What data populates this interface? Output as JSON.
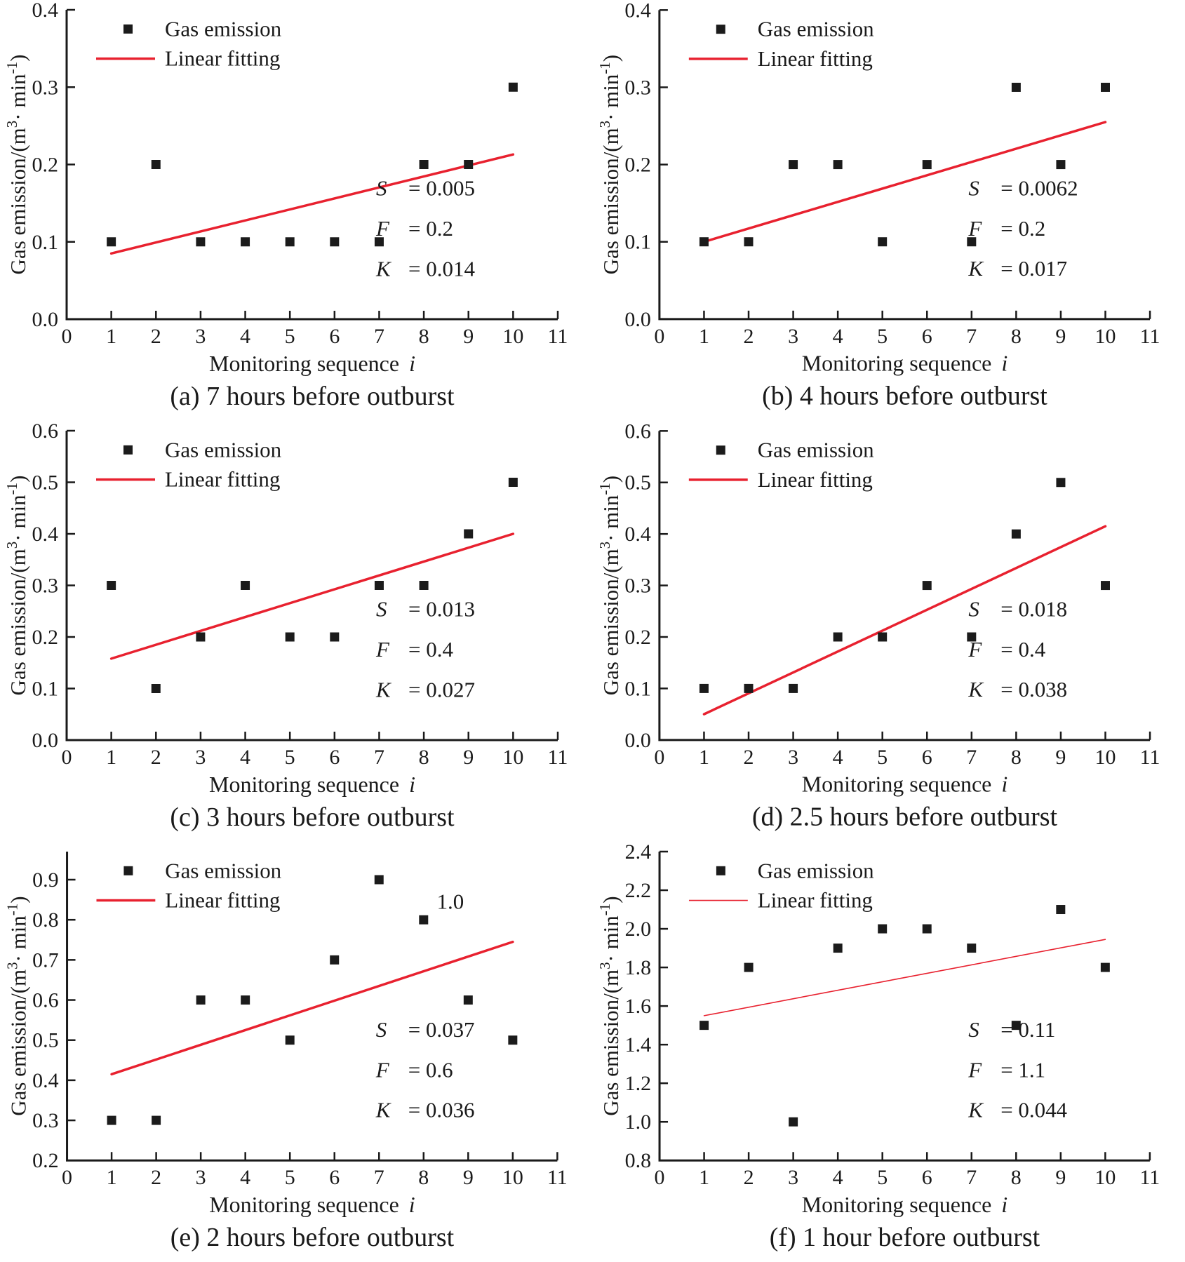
{
  "figure": {
    "x_axis_label": {
      "prefix": "Monitoring sequence",
      "var": "i"
    },
    "y_axis_label": {
      "prefix": "Gas emission/(m",
      "sup1": "3",
      "mid": "· min",
      "sup2": "-1",
      "suffix": ")"
    },
    "legend": {
      "marker_label": "Gas emission",
      "line_label": "Linear fitting"
    },
    "colors": {
      "point": "#1b1b1b",
      "fit_line": "#e8212f",
      "axis": "#1a1a1a",
      "text": "#1a1a1a"
    }
  },
  "chart_data": [
    {
      "type": "scatter",
      "panel": "a",
      "caption": "(a) 7 hours before outburst",
      "x": [
        1,
        2,
        3,
        4,
        5,
        6,
        7,
        8,
        9,
        10
      ],
      "y": [
        0.1,
        0.2,
        0.1,
        0.1,
        0.1,
        0.1,
        0.1,
        0.2,
        0.2,
        0.3
      ],
      "fit_line": {
        "x1": 1,
        "y1": 0.085,
        "x2": 10,
        "y2": 0.213
      },
      "stats": [
        {
          "k": "S",
          "v": "= 0.005"
        },
        {
          "k": "F",
          "v": "= 0.2"
        },
        {
          "k": "K",
          "v": "= 0.014"
        }
      ],
      "xlim": [
        0,
        11
      ],
      "ylim": [
        0,
        0.4
      ],
      "xticks": [
        "0",
        "1",
        "2",
        "3",
        "4",
        "5",
        "6",
        "7",
        "8",
        "9",
        "10",
        "11"
      ],
      "yticks": [
        "0.0",
        "0.1",
        "0.2",
        "0.3",
        "0.4"
      ],
      "fit_width": 3.5
    },
    {
      "type": "scatter",
      "panel": "b",
      "caption": "(b) 4 hours before outburst",
      "x": [
        1,
        2,
        3,
        4,
        5,
        6,
        7,
        8,
        9,
        10
      ],
      "y": [
        0.1,
        0.1,
        0.2,
        0.2,
        0.1,
        0.2,
        0.1,
        0.3,
        0.2,
        0.3
      ],
      "fit_line": {
        "x1": 1,
        "y1": 0.1,
        "x2": 10,
        "y2": 0.255
      },
      "stats": [
        {
          "k": "S",
          "v": "= 0.0062"
        },
        {
          "k": "F",
          "v": "= 0.2"
        },
        {
          "k": "K",
          "v": "= 0.017"
        }
      ],
      "xlim": [
        0,
        11
      ],
      "ylim": [
        0,
        0.4
      ],
      "xticks": [
        "0",
        "1",
        "2",
        "3",
        "4",
        "5",
        "6",
        "7",
        "8",
        "9",
        "10",
        "11"
      ],
      "yticks": [
        "0.0",
        "0.1",
        "0.2",
        "0.3",
        "0.4"
      ],
      "fit_width": 3.5
    },
    {
      "type": "scatter",
      "panel": "c",
      "caption": "(c) 3 hours before outburst",
      "x": [
        1,
        2,
        3,
        4,
        5,
        6,
        7,
        8,
        9,
        10
      ],
      "y": [
        0.3,
        0.1,
        0.2,
        0.3,
        0.2,
        0.2,
        0.3,
        0.3,
        0.4,
        0.5
      ],
      "fit_line": {
        "x1": 1,
        "y1": 0.158,
        "x2": 10,
        "y2": 0.4
      },
      "stats": [
        {
          "k": "S",
          "v": "= 0.013"
        },
        {
          "k": "F",
          "v": "= 0.4"
        },
        {
          "k": "K",
          "v": "= 0.027"
        }
      ],
      "xlim": [
        0,
        11
      ],
      "ylim": [
        0,
        0.6
      ],
      "xticks": [
        "0",
        "1",
        "2",
        "3",
        "4",
        "5",
        "6",
        "7",
        "8",
        "9",
        "10",
        "11"
      ],
      "yticks": [
        "0.0",
        "0.1",
        "0.2",
        "0.3",
        "0.4",
        "0.5",
        "0.6"
      ],
      "fit_width": 3.5
    },
    {
      "type": "scatter",
      "panel": "d",
      "caption": "(d) 2.5 hours before outburst",
      "x": [
        1,
        2,
        3,
        4,
        5,
        6,
        7,
        8,
        9,
        10
      ],
      "y": [
        0.1,
        0.1,
        0.1,
        0.2,
        0.2,
        0.3,
        0.2,
        0.4,
        0.5,
        0.3
      ],
      "fit_line": {
        "x1": 1,
        "y1": 0.05,
        "x2": 10,
        "y2": 0.415
      },
      "stats": [
        {
          "k": "S",
          "v": "= 0.018"
        },
        {
          "k": "F",
          "v": "= 0.4"
        },
        {
          "k": "K",
          "v": "= 0.038"
        }
      ],
      "xlim": [
        0,
        11
      ],
      "ylim": [
        0,
        0.6
      ],
      "xticks": [
        "0",
        "1",
        "2",
        "3",
        "4",
        "5",
        "6",
        "7",
        "8",
        "9",
        "10",
        "11"
      ],
      "yticks": [
        "0.0",
        "0.1",
        "0.2",
        "0.3",
        "0.4",
        "0.5",
        "0.6"
      ],
      "fit_width": 3.5
    },
    {
      "type": "scatter",
      "panel": "e",
      "caption": "(e) 2 hours before outburst",
      "x": [
        1,
        2,
        3,
        4,
        5,
        6,
        7,
        8,
        9,
        10
      ],
      "y": [
        0.3,
        0.3,
        0.6,
        0.6,
        0.5,
        0.7,
        0.9,
        0.8,
        0.6,
        0.5
      ],
      "fit_line": {
        "x1": 1,
        "y1": 0.415,
        "x2": 10,
        "y2": 0.745
      },
      "stats": [
        {
          "k": "S",
          "v": "= 0.037"
        },
        {
          "k": "F",
          "v": "= 0.6"
        },
        {
          "k": "K",
          "v": "= 0.036"
        }
      ],
      "annotation": {
        "text": "1.0",
        "x": 8.6,
        "y": 0.845
      },
      "xlim": [
        0,
        11
      ],
      "ylim": [
        0.2,
        0.97
      ],
      "xticks": [
        "0",
        "1",
        "2",
        "3",
        "4",
        "5",
        "6",
        "7",
        "8",
        "9",
        "10",
        "11"
      ],
      "yticks": [
        "0.2",
        "0.3",
        "0.4",
        "0.5",
        "0.6",
        "0.7",
        "0.8",
        "0.9"
      ],
      "fit_width": 3.5
    },
    {
      "type": "scatter",
      "panel": "f",
      "caption": "(f) 1 hour before outburst",
      "x": [
        1,
        2,
        3,
        4,
        5,
        6,
        7,
        8,
        9,
        10
      ],
      "y": [
        1.5,
        1.8,
        1.0,
        1.9,
        2.0,
        2.0,
        1.9,
        1.5,
        2.1,
        1.8
      ],
      "fit_line": {
        "x1": 1,
        "y1": 1.55,
        "x2": 10,
        "y2": 1.945
      },
      "stats": [
        {
          "k": "S",
          "v": "= 0.11"
        },
        {
          "k": "F",
          "v": "= 1.1"
        },
        {
          "k": "K",
          "v": "= 0.044"
        }
      ],
      "xlim": [
        0,
        11
      ],
      "ylim": [
        0.8,
        2.4
      ],
      "xticks": [
        "0",
        "1",
        "2",
        "3",
        "4",
        "5",
        "6",
        "7",
        "8",
        "9",
        "10",
        "11"
      ],
      "yticks": [
        "0.8",
        "1.0",
        "1.2",
        "1.4",
        "1.6",
        "1.8",
        "2.0",
        "2.2",
        "2.4"
      ],
      "fit_width": 1.6
    }
  ]
}
